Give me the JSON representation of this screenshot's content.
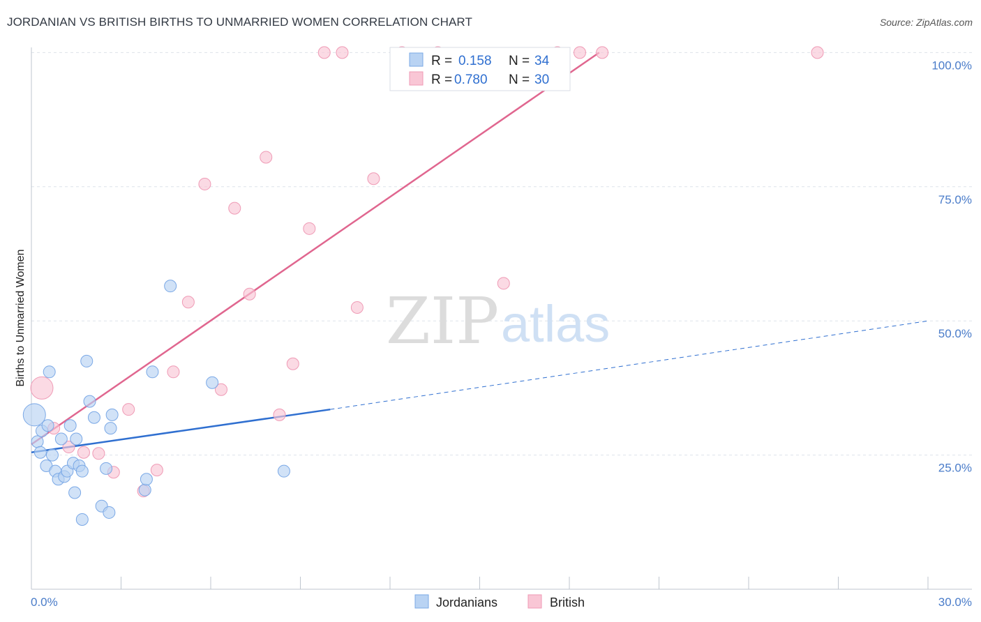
{
  "title": "JORDANIAN VS BRITISH BIRTHS TO UNMARRIED WOMEN CORRELATION CHART",
  "source": "Source: ZipAtlas.com",
  "watermark": {
    "zip": "ZIP",
    "atlas": "atlas"
  },
  "colors": {
    "jordanians_fill": "#b9d3f3",
    "jordanians_stroke": "#7aa8e6",
    "jordanians_line": "#2f6fd0",
    "british_fill": "#f9c6d5",
    "british_stroke": "#ef9ab5",
    "british_line": "#e0668f",
    "tick_label": "#4a7cc9",
    "grid": "#dde3ea"
  },
  "legend": {
    "rows": [
      {
        "r_label": "R =",
        "r_value": "0.158",
        "n_label": "N =",
        "n_value": "34"
      },
      {
        "r_label": "R =",
        "r_value": "0.780",
        "n_label": "N =",
        "n_value": "30"
      }
    ]
  },
  "bottom_legend": [
    "Jordanians",
    "British"
  ],
  "chart_data": {
    "type": "scatter",
    "title": "JORDANIAN VS BRITISH BIRTHS TO UNMARRIED WOMEN CORRELATION CHART",
    "xlabel": "",
    "ylabel": "Births to Unmarried Women",
    "xlim": [
      0,
      30
    ],
    "ylim": [
      0,
      102
    ],
    "x_tick_labels": [
      "0.0%",
      "30.0%"
    ],
    "y_ticks": [
      25,
      50,
      75,
      100
    ],
    "y_tick_labels": [
      "25.0%",
      "50.0%",
      "75.0%",
      "100.0%"
    ],
    "grid": true,
    "legend_position": "top-center",
    "series": [
      {
        "name": "Jordanians",
        "r": 0.158,
        "n": 34,
        "trend": {
          "x0": 0,
          "y0": 25.5,
          "x1": 10,
          "y1": 33.5,
          "dashed_to_x": 30,
          "dashed_to_y": 50
        },
        "points": [
          {
            "x": 0.1,
            "y": 32.5,
            "big": true
          },
          {
            "x": 0.2,
            "y": 27.5
          },
          {
            "x": 0.3,
            "y": 25.5
          },
          {
            "x": 0.35,
            "y": 29.5
          },
          {
            "x": 0.5,
            "y": 23
          },
          {
            "x": 0.55,
            "y": 30.5
          },
          {
            "x": 0.6,
            "y": 40.5
          },
          {
            "x": 0.7,
            "y": 25
          },
          {
            "x": 0.8,
            "y": 22
          },
          {
            "x": 0.9,
            "y": 20.5
          },
          {
            "x": 1.0,
            "y": 28
          },
          {
            "x": 1.1,
            "y": 21
          },
          {
            "x": 1.2,
            "y": 22
          },
          {
            "x": 1.3,
            "y": 30.5
          },
          {
            "x": 1.4,
            "y": 23.5
          },
          {
            "x": 1.45,
            "y": 18
          },
          {
            "x": 1.5,
            "y": 28
          },
          {
            "x": 1.6,
            "y": 23
          },
          {
            "x": 1.7,
            "y": 22
          },
          {
            "x": 1.7,
            "y": 13
          },
          {
            "x": 1.85,
            "y": 42.5
          },
          {
            "x": 1.95,
            "y": 35
          },
          {
            "x": 2.1,
            "y": 32
          },
          {
            "x": 2.35,
            "y": 15.5
          },
          {
            "x": 2.5,
            "y": 22.5
          },
          {
            "x": 2.6,
            "y": 14.3
          },
          {
            "x": 2.65,
            "y": 30
          },
          {
            "x": 2.7,
            "y": 32.5
          },
          {
            "x": 3.8,
            "y": 18.5
          },
          {
            "x": 3.85,
            "y": 20.5
          },
          {
            "x": 4.05,
            "y": 40.5
          },
          {
            "x": 4.65,
            "y": 56.5
          },
          {
            "x": 6.05,
            "y": 38.5
          },
          {
            "x": 8.45,
            "y": 22
          }
        ]
      },
      {
        "name": "British",
        "r": 0.78,
        "n": 30,
        "trend": {
          "x0": 0,
          "y0": 27,
          "x1": 19,
          "y1": 100
        },
        "points": [
          {
            "x": 0.35,
            "y": 37.5,
            "big": true
          },
          {
            "x": 0.75,
            "y": 30
          },
          {
            "x": 1.25,
            "y": 26.5
          },
          {
            "x": 1.75,
            "y": 25.5
          },
          {
            "x": 2.25,
            "y": 25.3
          },
          {
            "x": 2.75,
            "y": 21.8
          },
          {
            "x": 3.25,
            "y": 33.5
          },
          {
            "x": 3.75,
            "y": 18.3
          },
          {
            "x": 4.2,
            "y": 22.2
          },
          {
            "x": 4.75,
            "y": 40.5
          },
          {
            "x": 5.25,
            "y": 53.5
          },
          {
            "x": 5.8,
            "y": 75.5
          },
          {
            "x": 6.35,
            "y": 37.2
          },
          {
            "x": 6.8,
            "y": 71
          },
          {
            "x": 7.3,
            "y": 55
          },
          {
            "x": 7.85,
            "y": 80.5
          },
          {
            "x": 8.3,
            "y": 32.5
          },
          {
            "x": 8.75,
            "y": 42
          },
          {
            "x": 9.3,
            "y": 67.2
          },
          {
            "x": 9.8,
            "y": 100
          },
          {
            "x": 10.4,
            "y": 100
          },
          {
            "x": 10.9,
            "y": 52.5
          },
          {
            "x": 11.45,
            "y": 76.5
          },
          {
            "x": 12.4,
            "y": 100
          },
          {
            "x": 13.6,
            "y": 100
          },
          {
            "x": 15.8,
            "y": 57
          },
          {
            "x": 17.6,
            "y": 100
          },
          {
            "x": 18.35,
            "y": 100
          },
          {
            "x": 19.1,
            "y": 100
          },
          {
            "x": 26.3,
            "y": 100
          }
        ]
      }
    ]
  }
}
